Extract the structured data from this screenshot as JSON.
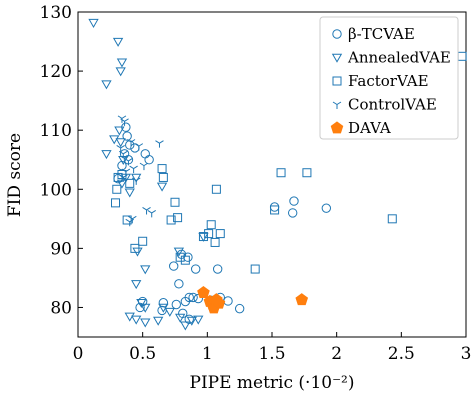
{
  "chart_data": {
    "type": "scatter",
    "xlabel": "PIPE metric (·10⁻²)",
    "ylabel": "FID score",
    "xlim": [
      0,
      3
    ],
    "ylim": [
      75,
      130
    ],
    "xticks": [
      "0",
      "0.5",
      "1",
      "1.5",
      "2",
      "2.5",
      "3"
    ],
    "yticks": [
      "80",
      "90",
      "100",
      "110",
      "120",
      "130"
    ],
    "grid": false,
    "legend_position": "top-right",
    "series": [
      {
        "name": "β-TCVAE",
        "marker": "circle",
        "color": "#1f77b4",
        "points": [
          [
            0.37,
            110.5
          ],
          [
            0.38,
            109.0
          ],
          [
            0.4,
            107.5
          ],
          [
            0.44,
            107.0
          ],
          [
            0.36,
            106.0
          ],
          [
            0.39,
            105.0
          ],
          [
            0.34,
            104.0
          ],
          [
            0.52,
            106.0
          ],
          [
            0.55,
            105.0
          ],
          [
            0.31,
            101.8
          ],
          [
            0.5,
            81.0
          ],
          [
            0.48,
            80.0
          ],
          [
            0.66,
            80.8
          ],
          [
            0.65,
            79.5
          ],
          [
            0.76,
            80.5
          ],
          [
            0.83,
            81.0
          ],
          [
            0.86,
            81.7
          ],
          [
            0.89,
            81.7
          ],
          [
            0.81,
            79.0
          ],
          [
            0.86,
            78.0
          ],
          [
            0.74,
            87.0
          ],
          [
            0.85,
            88.5
          ],
          [
            0.91,
            86.5
          ],
          [
            0.8,
            89.0
          ],
          [
            0.78,
            84.0
          ],
          [
            0.93,
            81.5
          ],
          [
            1.03,
            81.2
          ],
          [
            1.1,
            81.7
          ],
          [
            1.16,
            81.1
          ],
          [
            1.25,
            79.8
          ],
          [
            1.08,
            86.5
          ],
          [
            1.52,
            97.0
          ],
          [
            1.66,
            96.0
          ],
          [
            1.67,
            98.0
          ],
          [
            1.92,
            96.8
          ]
        ]
      },
      {
        "name": "AnnealedVAE",
        "marker": "triangle-down",
        "color": "#1f77b4",
        "points": [
          [
            0.12,
            128.2
          ],
          [
            0.31,
            125.0
          ],
          [
            0.34,
            121.5
          ],
          [
            0.33,
            120.0
          ],
          [
            0.22,
            117.8
          ],
          [
            0.32,
            110.0
          ],
          [
            0.33,
            108.0
          ],
          [
            0.28,
            108.5
          ],
          [
            0.22,
            106.0
          ],
          [
            0.35,
            105.0
          ],
          [
            0.37,
            102.0
          ],
          [
            0.45,
            102.0
          ],
          [
            0.34,
            101.0
          ],
          [
            0.4,
            99.5
          ],
          [
            0.65,
            100.5
          ],
          [
            0.46,
            89.5
          ],
          [
            0.52,
            86.5
          ],
          [
            0.45,
            84.0
          ],
          [
            0.52,
            80.0
          ],
          [
            0.4,
            78.5
          ],
          [
            0.45,
            78.0
          ],
          [
            0.52,
            77.5
          ],
          [
            0.62,
            77.8
          ],
          [
            0.66,
            80.0
          ],
          [
            0.71,
            79.3
          ],
          [
            0.79,
            78.3
          ],
          [
            0.83,
            77.0
          ],
          [
            0.88,
            77.8
          ],
          [
            0.93,
            78.0
          ],
          [
            0.49,
            80.8
          ],
          [
            0.78,
            89.5
          ],
          [
            0.97,
            92.0
          ]
        ]
      },
      {
        "name": "FactorVAE",
        "marker": "square",
        "color": "#1f77b4",
        "points": [
          [
            0.3,
            100.0
          ],
          [
            0.29,
            97.7
          ],
          [
            0.31,
            102.0
          ],
          [
            0.34,
            102.5
          ],
          [
            0.4,
            101.0
          ],
          [
            0.65,
            103.5
          ],
          [
            0.66,
            102.0
          ],
          [
            0.38,
            94.8
          ],
          [
            0.44,
            90.0
          ],
          [
            0.5,
            91.2
          ],
          [
            0.72,
            94.8
          ],
          [
            0.77,
            95.2
          ],
          [
            0.75,
            97.8
          ],
          [
            0.79,
            88.5
          ],
          [
            0.83,
            88.0
          ],
          [
            0.97,
            92.0
          ],
          [
            1.01,
            92.5
          ],
          [
            1.03,
            94.0
          ],
          [
            1.06,
            91.0
          ],
          [
            1.1,
            92.5
          ],
          [
            1.07,
            100.0
          ],
          [
            1.37,
            86.5
          ],
          [
            1.52,
            96.5
          ],
          [
            1.57,
            102.8
          ],
          [
            1.77,
            102.8
          ],
          [
            2.43,
            95.0
          ],
          [
            2.97,
            122.5
          ]
        ]
      },
      {
        "name": "ControlVAE",
        "marker": "tri-down",
        "color": "#1f77b4",
        "points": [
          [
            0.34,
            112.0
          ],
          [
            0.36,
            111.5
          ],
          [
            0.33,
            107.0
          ],
          [
            0.35,
            106.0
          ],
          [
            0.41,
            108.0
          ],
          [
            0.47,
            107.3
          ],
          [
            0.39,
            104.8
          ],
          [
            0.43,
            103.5
          ],
          [
            0.37,
            103.0
          ],
          [
            0.35,
            102.0
          ],
          [
            0.45,
            101.5
          ],
          [
            0.51,
            104.0
          ],
          [
            0.63,
            107.8
          ],
          [
            0.57,
            96.0
          ],
          [
            0.42,
            95.0
          ],
          [
            0.4,
            94.5
          ],
          [
            0.53,
            96.5
          ]
        ]
      },
      {
        "name": "DAVA",
        "marker": "pentagon",
        "color": "#ff7f0e",
        "points": [
          [
            0.97,
            82.5
          ],
          [
            1.02,
            81.0
          ],
          [
            1.04,
            80.5
          ],
          [
            1.05,
            79.9
          ],
          [
            1.07,
            81.3
          ],
          [
            1.09,
            80.7
          ],
          [
            1.73,
            81.3
          ]
        ]
      }
    ]
  }
}
